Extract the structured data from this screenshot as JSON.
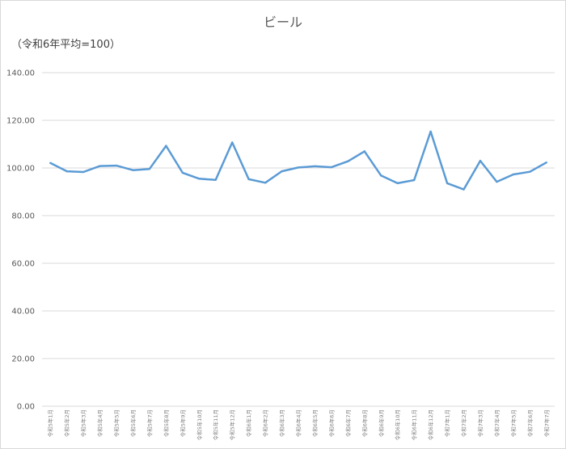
{
  "chart_data": {
    "type": "line",
    "title": "ビール",
    "subtitle": "（令和6年平均=100）",
    "xlabel": "",
    "ylabel": "",
    "ylim": [
      0,
      140
    ],
    "yticks": [
      "0.00",
      "20.00",
      "40.00",
      "60.00",
      "80.00",
      "100.00",
      "120.00",
      "140.00"
    ],
    "grid": true,
    "color": "#5b9bd5",
    "categories": [
      "令和5年1月",
      "令和5年2月",
      "令和5年3月",
      "令和5年4月",
      "令和5年5月",
      "令和5年6月",
      "令和5年7月",
      "令和5年8月",
      "令和5年9月",
      "令和5年10月",
      "令和5年11月",
      "令和5年12月",
      "令和6年1月",
      "令和6年2月",
      "令和6年3月",
      "令和6年4月",
      "令和6年5月",
      "令和6年6月",
      "令和6年7月",
      "令和6年8月",
      "令和6年9月",
      "令和6年10月",
      "令和6年11月",
      "令和6年12月",
      "令和7年1月",
      "令和7年2月",
      "令和7年3月",
      "令和7年4月",
      "令和7年5月",
      "令和7年6月",
      "令和7年7月"
    ],
    "values": [
      102.1,
      98.6,
      98.3,
      100.8,
      101.0,
      99.1,
      99.6,
      109.3,
      98.0,
      95.5,
      95.0,
      110.7,
      95.3,
      93.8,
      98.6,
      100.2,
      100.7,
      100.3,
      102.8,
      107.0,
      96.8,
      93.6,
      94.9,
      115.3,
      93.6,
      91.0,
      103.0,
      94.2,
      97.3,
      98.4,
      102.3
    ]
  }
}
